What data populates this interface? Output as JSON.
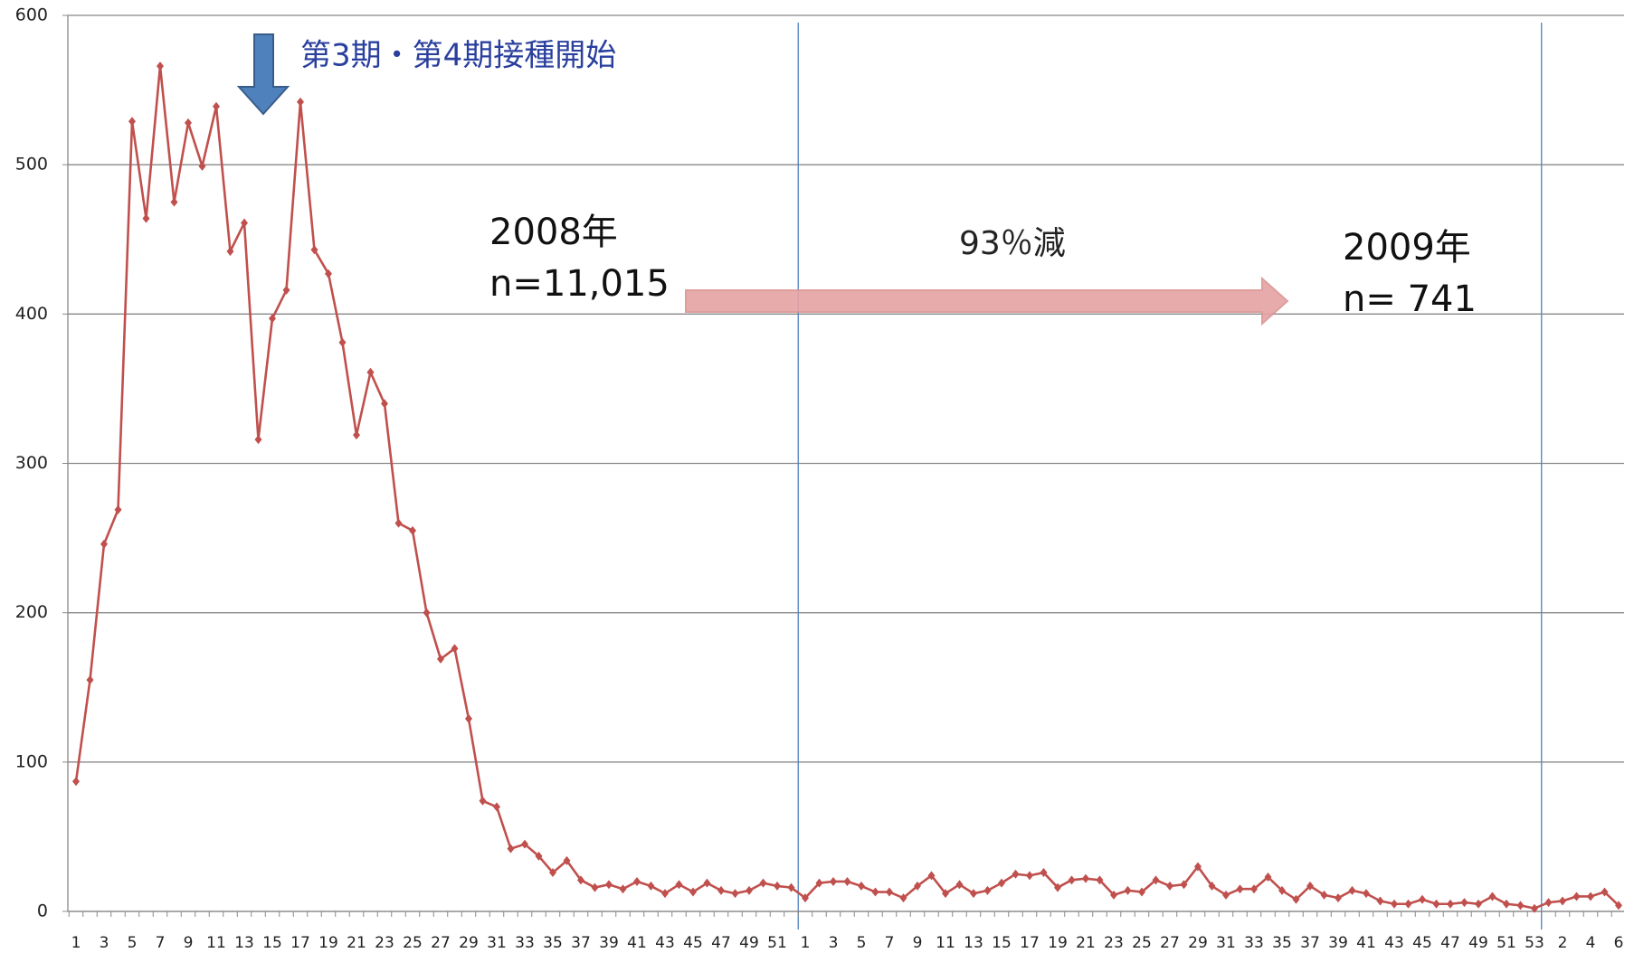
{
  "chart_data": {
    "type": "line",
    "categories": [
      "1",
      null,
      "3",
      null,
      "5",
      null,
      "7",
      null,
      "9",
      null,
      "11",
      null,
      "13",
      null,
      "15",
      null,
      "17",
      null,
      "19",
      null,
      "21",
      null,
      "23",
      null,
      "25",
      null,
      "27",
      null,
      "29",
      null,
      "31",
      null,
      "33",
      null,
      "35",
      null,
      "37",
      null,
      "39",
      null,
      "41",
      null,
      "43",
      null,
      "45",
      null,
      "47",
      null,
      "49",
      null,
      "51",
      null,
      "1",
      null,
      "3",
      null,
      "5",
      null,
      "7",
      null,
      "9",
      null,
      "11",
      null,
      "13",
      null,
      "15",
      null,
      "17",
      null,
      "19",
      null,
      "21",
      null,
      "23",
      null,
      "25",
      null,
      "27",
      null,
      "29",
      null,
      "31",
      null,
      "33",
      null,
      "35",
      null,
      "37",
      null,
      "39",
      null,
      "41",
      null,
      "43",
      null,
      "45",
      null,
      "47",
      null,
      "49",
      null,
      "51",
      null,
      "53",
      null,
      "2",
      null,
      "4",
      null,
      "6"
    ],
    "series": [
      {
        "color": "#c0504d",
        "values": [
          87,
          155,
          246,
          269,
          529,
          464,
          566,
          475,
          528,
          499,
          539,
          442,
          461,
          316,
          397,
          416,
          542,
          443,
          427,
          381,
          319,
          361,
          340,
          260,
          255,
          200,
          169,
          176,
          129,
          74,
          70,
          42,
          45,
          37,
          26,
          34,
          21,
          16,
          18,
          15,
          20,
          17,
          12,
          18,
          13,
          19,
          14,
          12,
          14,
          19,
          17,
          16,
          9,
          19,
          20,
          20,
          17,
          13,
          13,
          9,
          17,
          24,
          12,
          18,
          12,
          14,
          19,
          25,
          24,
          26,
          16,
          21,
          22,
          21,
          11,
          14,
          13,
          21,
          17,
          18,
          30,
          17,
          11,
          15,
          15,
          23,
          14,
          8,
          17,
          11,
          9,
          14,
          12,
          7,
          5,
          5,
          8,
          5,
          5,
          6,
          5,
          10,
          5,
          4,
          2,
          6,
          7,
          10,
          10,
          13,
          4
        ]
      }
    ],
    "ylim": [
      0,
      600
    ],
    "yticks": [
      0,
      100,
      200,
      300,
      400,
      500,
      600
    ],
    "grid": true,
    "annotations": [
      "第3期・第4期接種開始",
      "2008年",
      "n=11,015",
      "93％減",
      "2009年",
      "n= 741"
    ]
  }
}
